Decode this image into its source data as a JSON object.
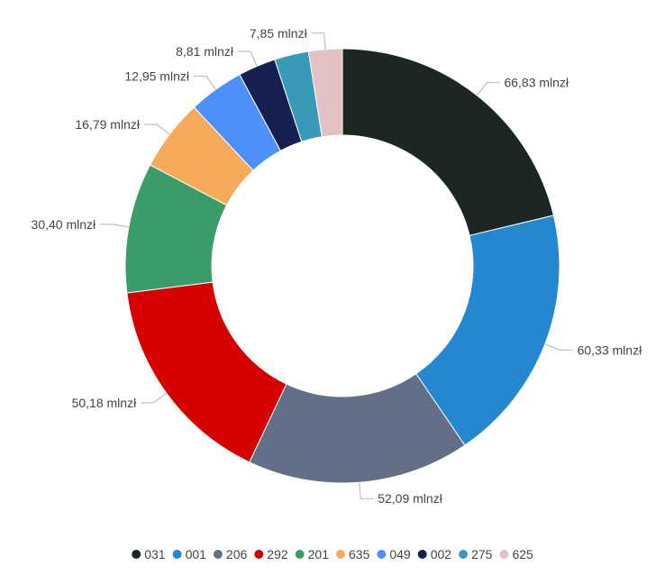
{
  "chart_data": {
    "type": "pie",
    "variant": "donut",
    "unit_suffix": " mlnzł",
    "title": "",
    "legend_position": "bottom",
    "slices": [
      {
        "name": "031",
        "value": 66.83,
        "label": "66,83 mlnzł",
        "color": "#1d2623"
      },
      {
        "name": "001",
        "value": 60.33,
        "label": "60,33 mlnzł",
        "color": "#2388d0"
      },
      {
        "name": "206",
        "value": 52.09,
        "label": "52,09 mlnzł",
        "color": "#636e87"
      },
      {
        "name": "292",
        "value": 50.18,
        "label": "50,18 mlnzł",
        "color": "#d60202"
      },
      {
        "name": "201",
        "value": 30.4,
        "label": "30,40 mlnzł",
        "color": "#3a9c68"
      },
      {
        "name": "635",
        "value": 16.79,
        "label": "16,79 mlnzł",
        "color": "#f7ab5a"
      },
      {
        "name": "049",
        "value": 12.95,
        "label": "12,95 mlnzł",
        "color": "#4d90f9"
      },
      {
        "name": "002",
        "value": 8.81,
        "label": "8,81 mlnzł",
        "color": "#152051"
      },
      {
        "name": "275",
        "value": 8.0,
        "label": "",
        "color": "#399ab8"
      },
      {
        "name": "625",
        "value": 7.85,
        "label": "7,85 mlnzł",
        "color": "#e3c0c2"
      }
    ]
  }
}
